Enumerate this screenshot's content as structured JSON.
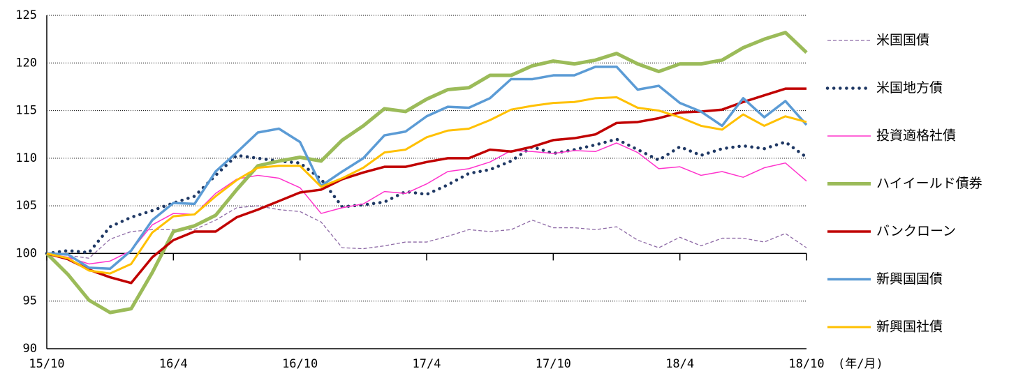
{
  "chart_data": {
    "type": "line",
    "x_label": "(年/月)",
    "categories": [
      "15/10",
      null,
      null,
      null,
      null,
      null,
      "16/4",
      null,
      null,
      null,
      null,
      null,
      "16/10",
      null,
      null,
      null,
      null,
      null,
      "17/4",
      null,
      null,
      null,
      null,
      null,
      "17/10",
      null,
      null,
      null,
      null,
      null,
      "18/4",
      null,
      null,
      null,
      null,
      null,
      "18/10"
    ],
    "ylim": [
      90,
      125
    ],
    "yticks": [
      90,
      95,
      100,
      105,
      110,
      115,
      120,
      125
    ],
    "grid": true,
    "baseline": 100,
    "legend": "right",
    "series": [
      {
        "name": "米国国債",
        "color": "#8e6aa6",
        "width": 1.3,
        "dash": "dashed",
        "values": [
          100,
          99.8,
          99.5,
          101.5,
          102.3,
          102.5,
          102.5,
          102.5,
          103.5,
          104.8,
          105.0,
          104.6,
          104.4,
          103.3,
          100.6,
          100.5,
          100.8,
          101.2,
          101.2,
          101.8,
          102.5,
          102.3,
          102.5,
          103.5,
          102.7,
          102.7,
          102.5,
          102.8,
          101.4,
          100.6,
          101.7,
          100.8,
          101.6,
          101.6,
          101.2,
          102.1,
          100.6
        ]
      },
      {
        "name": "米国地方債",
        "color": "#1f3864",
        "width": 4.5,
        "dash": "dotted",
        "values": [
          100,
          100.3,
          100.1,
          102.8,
          103.8,
          104.5,
          105.3,
          106.0,
          108.2,
          110.3,
          110.0,
          109.7,
          109.5,
          107.8,
          104.9,
          105.1,
          105.4,
          106.5,
          106.2,
          107.2,
          108.4,
          108.8,
          109.7,
          111.2,
          110.5,
          110.9,
          111.4,
          112.0,
          110.9,
          109.8,
          111.2,
          110.3,
          111.0,
          111.3,
          111.0,
          111.7,
          110.1
        ]
      },
      {
        "name": "投資適格社債",
        "color": "#ff33cc",
        "width": 1.5,
        "dash": "solid",
        "values": [
          100,
          99.6,
          98.9,
          99.2,
          100.3,
          103.0,
          104.2,
          104.1,
          106.3,
          107.8,
          108.2,
          107.9,
          106.9,
          104.2,
          104.8,
          105.2,
          106.5,
          106.3,
          107.3,
          108.6,
          108.9,
          109.6,
          110.8,
          110.7,
          110.5,
          110.8,
          110.7,
          111.6,
          110.6,
          108.9,
          109.1,
          108.2,
          108.6,
          108.0,
          109.0,
          109.5,
          107.6
        ]
      },
      {
        "name": "ハイイールド債券",
        "color": "#9bbb59",
        "width": 5,
        "dash": "solid",
        "values": [
          100,
          97.8,
          95.1,
          93.8,
          94.2,
          98.0,
          102.3,
          102.9,
          104.0,
          106.7,
          109.2,
          109.7,
          110.1,
          109.7,
          111.9,
          113.4,
          115.2,
          114.9,
          116.2,
          117.2,
          117.4,
          118.7,
          118.7,
          119.7,
          120.2,
          119.9,
          120.3,
          121.0,
          119.9,
          119.1,
          119.9,
          119.9,
          120.3,
          121.6,
          122.5,
          123.2,
          121.1
        ]
      },
      {
        "name": "バンクローン",
        "color": "#c00000",
        "width": 3.5,
        "dash": "solid",
        "values": [
          100,
          99.4,
          98.3,
          97.5,
          96.9,
          99.6,
          101.4,
          102.3,
          102.3,
          103.8,
          104.6,
          105.5,
          106.4,
          106.7,
          107.8,
          108.5,
          109.1,
          109.1,
          109.6,
          110.0,
          110.0,
          110.9,
          110.7,
          111.2,
          111.9,
          112.1,
          112.5,
          113.7,
          113.8,
          114.2,
          114.8,
          114.9,
          115.1,
          115.9,
          116.6,
          117.3,
          117.3
        ]
      },
      {
        "name": "新興国国債",
        "color": "#5b9bd5",
        "width": 3.5,
        "dash": "solid",
        "values": [
          100,
          99.9,
          98.5,
          98.4,
          100.3,
          103.5,
          105.3,
          105.2,
          108.6,
          110.6,
          112.7,
          113.1,
          111.7,
          107.1,
          108.6,
          110.0,
          112.4,
          112.8,
          114.4,
          115.4,
          115.3,
          116.3,
          118.3,
          118.3,
          118.7,
          118.7,
          119.6,
          119.6,
          117.2,
          117.6,
          115.8,
          114.9,
          113.4,
          116.3,
          114.3,
          116.0,
          113.5
        ]
      },
      {
        "name": "新興国社債",
        "color": "#ffc000",
        "width": 3,
        "dash": "solid",
        "values": [
          100,
          99.5,
          98.2,
          97.9,
          98.9,
          102.2,
          103.9,
          104.1,
          106.0,
          107.7,
          109.0,
          109.2,
          109.2,
          107.0,
          107.9,
          109.0,
          110.6,
          110.9,
          112.2,
          112.9,
          113.1,
          114.0,
          115.1,
          115.5,
          115.8,
          115.9,
          116.3,
          116.4,
          115.3,
          115.0,
          114.3,
          113.4,
          113.0,
          114.6,
          113.4,
          114.4,
          113.8
        ]
      }
    ]
  }
}
